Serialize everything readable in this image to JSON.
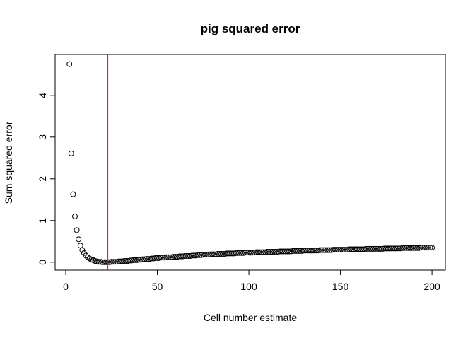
{
  "chart_data": {
    "type": "scatter",
    "title": "pig squared error",
    "xlabel": "Cell number estimate",
    "ylabel": "Sum squared error",
    "x": [
      2,
      3,
      4,
      5,
      6,
      7,
      8,
      9,
      10,
      11,
      12,
      13,
      14,
      15,
      16,
      17,
      18,
      19,
      20,
      21,
      22,
      23,
      24,
      25,
      26,
      27,
      28,
      29,
      30,
      31,
      32,
      33,
      34,
      35,
      36,
      37,
      38,
      39,
      40,
      41,
      42,
      43,
      44,
      45,
      46,
      47,
      48,
      49,
      50,
      51,
      52,
      53,
      54,
      55,
      56,
      57,
      58,
      59,
      60,
      61,
      62,
      63,
      64,
      65,
      66,
      67,
      68,
      69,
      70,
      71,
      72,
      73,
      74,
      75,
      76,
      77,
      78,
      79,
      80,
      81,
      82,
      83,
      84,
      85,
      86,
      87,
      88,
      89,
      90,
      91,
      92,
      93,
      94,
      95,
      96,
      97,
      98,
      99,
      100,
      101,
      102,
      103,
      104,
      105,
      106,
      107,
      108,
      109,
      110,
      111,
      112,
      113,
      114,
      115,
      116,
      117,
      118,
      119,
      120,
      121,
      122,
      123,
      124,
      125,
      126,
      127,
      128,
      129,
      130,
      131,
      132,
      133,
      134,
      135,
      136,
      137,
      138,
      139,
      140,
      141,
      142,
      143,
      144,
      145,
      146,
      147,
      148,
      149,
      150,
      151,
      152,
      153,
      154,
      155,
      156,
      157,
      158,
      159,
      160,
      161,
      162,
      163,
      164,
      165,
      166,
      167,
      168,
      169,
      170,
      171,
      172,
      173,
      174,
      175,
      176,
      177,
      178,
      179,
      180,
      181,
      182,
      183,
      184,
      185,
      186,
      187,
      188,
      189,
      190,
      191,
      192,
      193,
      194,
      195,
      196,
      197,
      198,
      199,
      200
    ],
    "values": [
      4.75,
      2.61,
      1.63,
      1.1,
      0.77,
      0.55,
      0.4,
      0.29,
      0.22,
      0.16,
      0.12,
      0.09,
      0.06,
      0.05,
      0.03,
      0.02,
      0.01,
      0.01,
      0,
      0,
      0,
      0,
      0,
      0.01,
      0.01,
      0.01,
      0.01,
      0.02,
      0.02,
      0.02,
      0.03,
      0.03,
      0.03,
      0.04,
      0.04,
      0.05,
      0.05,
      0.05,
      0.06,
      0.06,
      0.07,
      0.07,
      0.08,
      0.08,
      0.08,
      0.09,
      0.09,
      0.1,
      0.1,
      0.1,
      0.11,
      0.11,
      0.11,
      0.12,
      0.12,
      0.12,
      0.12,
      0.13,
      0.13,
      0.13,
      0.14,
      0.14,
      0.14,
      0.15,
      0.15,
      0.15,
      0.15,
      0.16,
      0.16,
      0.16,
      0.17,
      0.17,
      0.17,
      0.18,
      0.18,
      0.18,
      0.18,
      0.19,
      0.19,
      0.19,
      0.19,
      0.2,
      0.2,
      0.2,
      0.2,
      0.2,
      0.21,
      0.21,
      0.21,
      0.21,
      0.21,
      0.22,
      0.22,
      0.22,
      0.22,
      0.22,
      0.23,
      0.23,
      0.23,
      0.23,
      0.23,
      0.23,
      0.24,
      0.24,
      0.24,
      0.24,
      0.24,
      0.24,
      0.25,
      0.25,
      0.25,
      0.25,
      0.25,
      0.25,
      0.25,
      0.26,
      0.26,
      0.26,
      0.26,
      0.26,
      0.26,
      0.26,
      0.27,
      0.27,
      0.27,
      0.27,
      0.27,
      0.27,
      0.28,
      0.28,
      0.28,
      0.28,
      0.28,
      0.28,
      0.28,
      0.28,
      0.28,
      0.29,
      0.29,
      0.29,
      0.29,
      0.29,
      0.29,
      0.29,
      0.3,
      0.3,
      0.3,
      0.3,
      0.3,
      0.3,
      0.3,
      0.3,
      0.3,
      0.31,
      0.31,
      0.31,
      0.31,
      0.31,
      0.31,
      0.31,
      0.31,
      0.31,
      0.32,
      0.32,
      0.32,
      0.32,
      0.32,
      0.32,
      0.32,
      0.32,
      0.32,
      0.32,
      0.33,
      0.33,
      0.33,
      0.33,
      0.33,
      0.33,
      0.33,
      0.33,
      0.33,
      0.33,
      0.34,
      0.34,
      0.34,
      0.34,
      0.34,
      0.34,
      0.34,
      0.34,
      0.34,
      0.34,
      0.35,
      0.35,
      0.35,
      0.35,
      0.35,
      0.35,
      0.35
    ],
    "color": "#000000",
    "xlim": [
      -5.8,
      207.3
    ],
    "ylim": [
      -0.19,
      4.98
    ],
    "xticks": [
      0,
      50,
      100,
      150,
      200
    ],
    "yticks": [
      0,
      1,
      2,
      3,
      4
    ],
    "vline": 23,
    "vline_color": "#ff0000"
  }
}
